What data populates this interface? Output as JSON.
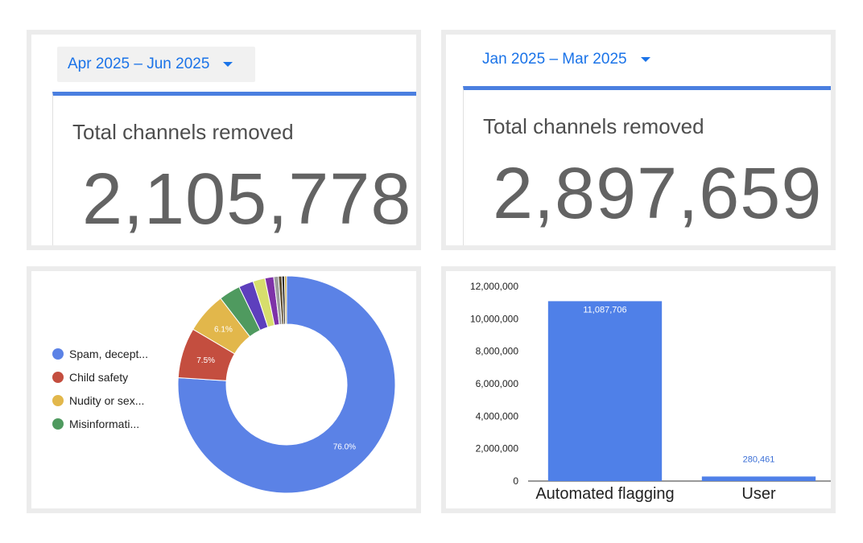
{
  "panels": {
    "left": {
      "period_label": "Apr 2025 – Jun 2025",
      "metric_title": "Total channels removed",
      "metric_value": "2,105,778"
    },
    "right": {
      "period_label": "Jan 2025 – Mar 2025",
      "metric_title": "Total channels removed",
      "metric_value": "2,897,659"
    }
  },
  "chart_data": [
    {
      "type": "pie",
      "title": "",
      "donut": true,
      "legend_position": "left",
      "legend": [
        {
          "label": "Spam, decept...",
          "color": "#5b82e6"
        },
        {
          "label": "Child safety",
          "color": "#c44e3f"
        },
        {
          "label": "Nudity or sex...",
          "color": "#e2b74b"
        },
        {
          "label": "Misinformati...",
          "color": "#4f9a5f"
        }
      ],
      "slices": [
        {
          "value": 76.0,
          "color": "#5b82e6",
          "label": "76.0%"
        },
        {
          "value": 7.5,
          "color": "#c44e3f",
          "label": "7.5%"
        },
        {
          "value": 6.1,
          "color": "#e2b74b",
          "label": "6.1%"
        },
        {
          "value": 3.2,
          "color": "#4f9a5f",
          "label": ""
        },
        {
          "value": 2.2,
          "color": "#5d3fbd",
          "label": ""
        },
        {
          "value": 1.8,
          "color": "#d7de6c",
          "label": ""
        },
        {
          "value": 1.3,
          "color": "#7e32a8",
          "label": ""
        },
        {
          "value": 0.7,
          "color": "#9d9d9d",
          "label": ""
        },
        {
          "value": 0.5,
          "color": "#5b4a2a",
          "label": ""
        },
        {
          "value": 0.4,
          "color": "#2b2b2b",
          "label": ""
        },
        {
          "value": 0.3,
          "color": "#c9a63a",
          "label": ""
        }
      ]
    },
    {
      "type": "bar",
      "title": "",
      "xlabel": "",
      "ylabel": "",
      "categories": [
        "Automated flagging",
        "User"
      ],
      "values": [
        11087706,
        280461
      ],
      "value_labels": [
        "11,087,706",
        "280,461"
      ],
      "color": "#4f80e8",
      "ylim": [
        0,
        12000000
      ],
      "yticks": [
        0,
        2000000,
        4000000,
        6000000,
        8000000,
        10000000,
        12000000
      ],
      "ytick_labels": [
        "0",
        "2,000,000",
        "4,000,000",
        "6,000,000",
        "8,000,000",
        "10,000,000",
        "12,000,000"
      ]
    }
  ]
}
